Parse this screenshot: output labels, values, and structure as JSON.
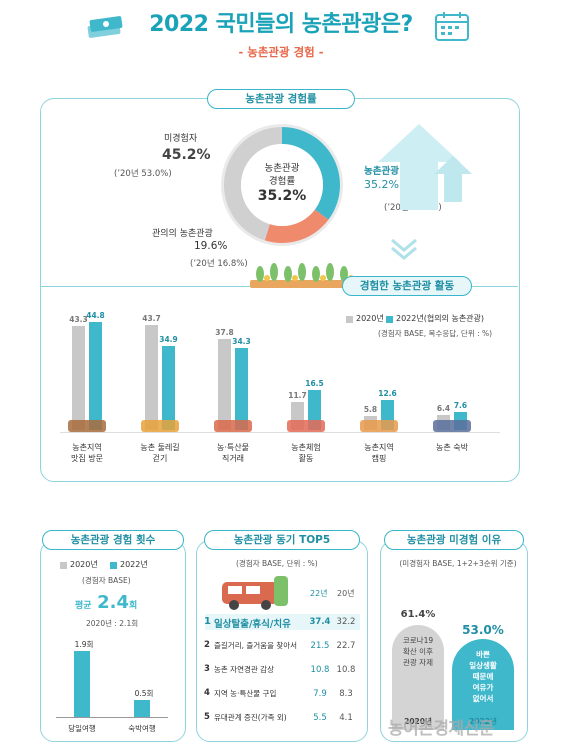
{
  "header": {
    "title": "2022 국민들의 농촌관광은?",
    "subtitle": "- 농촌관광 경험 -"
  },
  "section1": {
    "pill": "농촌관광 경험률",
    "center_line1": "농촌관광",
    "center_line2": "경험률",
    "center_value": "35.2%",
    "non_label": "미경험자",
    "non_value": "45.2%",
    "non_prev": "(’20년 53.0%)",
    "exp_label": "농촌관광 경험",
    "exp_value": "35.2%",
    "exp_prev": "(’20년 30.2%)",
    "int_label": "관의의 농촌관광",
    "int_value": "19.6%",
    "int_prev": "(’20년 16.8%)"
  },
  "section2": {
    "pill": "경험한 농촌관광 활동",
    "legend_2020": "2020년",
    "legend_2022": "2022년(협의의 농촌관광)",
    "note": "(경험자 BASE, 복수응답, 단위 : %)",
    "cat_line1": [
      "농촌지역",
      "농촌 둘레길",
      "농·특산물",
      "농촌체험",
      "농촌지역",
      "농촌 숙박"
    ],
    "cat_line2": [
      "맛집 방문",
      "걷기",
      "직거래",
      "활동",
      "캠핑",
      ""
    ]
  },
  "section3": {
    "pill": "농촌관광 경험 횟수",
    "legend_2020": "2020년",
    "legend_2022": "2022년",
    "note": "(경험자 BASE)",
    "avg_label": "평균",
    "avg_value": "2.4",
    "avg_unit": "회",
    "prev": "2020년 : 2.1회",
    "bar1_value": "1.9회",
    "bar2_value": "0.5회",
    "cat1": "당일여행",
    "cat2": "숙박여행"
  },
  "section4": {
    "pill": "농촌관광 동기 TOP5",
    "note": "(경험자 BASE, 단위 : %)",
    "col_2022": "22년",
    "col_2020": "20년",
    "rows": [
      {
        "rank": "1",
        "label": "일상탈출/휴식/치유",
        "v22": "37.4",
        "v20": "32.2"
      },
      {
        "rank": "2",
        "label": "즐길거리, 즐거움을 찾아서",
        "v22": "21.5",
        "v20": "22.7"
      },
      {
        "rank": "3",
        "label": "농촌 자연경관 감상",
        "v22": "10.8",
        "v20": "10.8"
      },
      {
        "rank": "4",
        "label": "지역 농·특산물 구입",
        "v22": "7.9",
        "v20": "8.3"
      },
      {
        "rank": "5",
        "label": "유대관계 증진(가족 외)",
        "v22": "5.5",
        "v20": "4.1"
      }
    ]
  },
  "section5": {
    "pill": "농촌관광 미경험 이유",
    "note": "(미경험자 BASE, 1+2+3순위 기준)",
    "v2020": "61.4%",
    "v2022": "53.0%",
    "reason2020": [
      "코로나19",
      "확산 이후",
      "관광 자제"
    ],
    "reason2022": [
      "바쁜",
      "일상생활",
      "때문에",
      "여유가",
      "없어서"
    ],
    "year2020": "2020년",
    "year2022": "2022년"
  },
  "watermark": "농어촌경제신문",
  "colors": {
    "teal": "#3fb8cc",
    "gray": "#c8c8c8",
    "salmon": "#f08a6c",
    "title": "#1aa2b8"
  },
  "chart_data": [
    {
      "type": "pie",
      "title": "농촌관광 경험률",
      "labels": [
        "농촌관광 경험",
        "관의의 농촌관광",
        "미경험자"
      ],
      "values": [
        35.2,
        19.6,
        45.2
      ]
    },
    {
      "type": "bar",
      "title": "경험한 농촌관광 활동",
      "categories": [
        "농촌지역 맛집 방문",
        "농촌 둘레길 걷기",
        "농·특산물 직거래",
        "농촌체험 활동",
        "농촌지역 캠핑",
        "농촌 숙박"
      ],
      "series": [
        {
          "name": "2020년",
          "values": [
            43.3,
            43.7,
            37.8,
            11.7,
            5.8,
            6.4
          ]
        },
        {
          "name": "2022년(협의의 농촌관광)",
          "values": [
            44.8,
            34.9,
            34.3,
            16.5,
            12.6,
            7.6
          ]
        }
      ],
      "ylim": [
        0,
        50
      ]
    },
    {
      "type": "bar",
      "title": "농촌관광 경험 횟수",
      "categories": [
        "당일여행",
        "숙박여행"
      ],
      "series": [
        {
          "name": "2022년",
          "values": [
            1.9,
            0.5
          ]
        }
      ]
    },
    {
      "type": "table",
      "title": "농촌관광 동기 TOP5",
      "columns": [
        "22년",
        "20년"
      ],
      "rows": [
        "일상탈출/휴식/치유",
        "즐길거리, 즐거움을 찾아서",
        "농촌 자연경관 감상",
        "지역 농·특산물 구입",
        "유대관계 증진(가족 외)"
      ],
      "values": [
        [
          37.4,
          32.2
        ],
        [
          21.5,
          22.7
        ],
        [
          10.8,
          10.8
        ],
        [
          7.9,
          8.3
        ],
        [
          5.5,
          4.1
        ]
      ]
    },
    {
      "type": "bar",
      "title": "농촌관광 미경험 이유",
      "categories": [
        "2020년",
        "2022년"
      ],
      "values": [
        61.4,
        53.0
      ]
    }
  ]
}
